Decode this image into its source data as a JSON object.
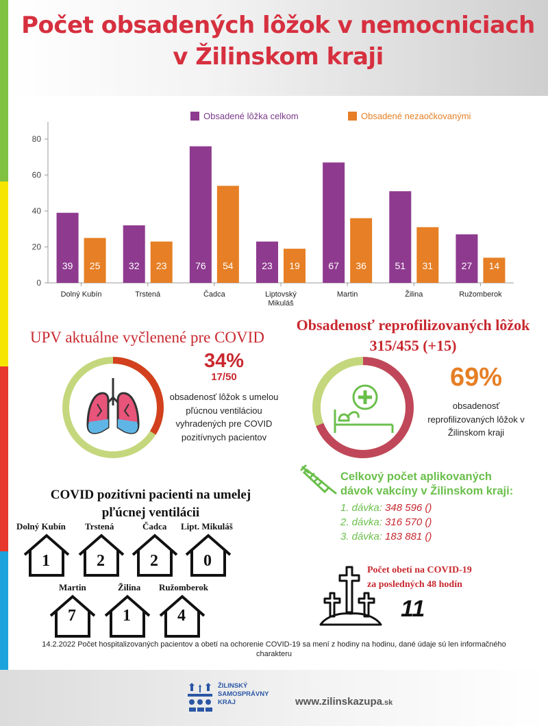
{
  "title_line1": "Počet obsadených lôžok v nemocniciach",
  "title_line2": "v Žilinskom kraji",
  "colors": {
    "purple": "#8e3a8f",
    "orange": "#e67f25",
    "red": "#c8282f",
    "green": "#6abf4b",
    "lightgreen": "#c5d77c"
  },
  "chart_data": {
    "type": "bar",
    "categories": [
      "Dolný Kubín",
      "Trstená",
      "Čadca",
      "Liptovský Mikuláš",
      "Martin",
      "Žilina",
      "Ružomberok"
    ],
    "series": [
      {
        "name": "Obsadené lôžka celkom",
        "values": [
          39,
          32,
          76,
          23,
          67,
          51,
          27
        ],
        "color": "#8e3a8f"
      },
      {
        "name": "Obsadené nezaočkovanými",
        "values": [
          25,
          23,
          54,
          19,
          36,
          31,
          14
        ],
        "color": "#e67f25"
      }
    ],
    "ylim": [
      0,
      85
    ],
    "yticks": [
      0,
      20,
      40,
      60,
      80
    ],
    "legend_position": "top-right",
    "grid": false
  },
  "upv": {
    "title": "UPV aktuálne vyčlenené pre COVID",
    "percent": "34%",
    "fraction": "17/50",
    "fill": 0.34,
    "description": "obsadenosť lôžok s umelou pľúcnou ventiláciou vyhradených pre COVID pozitívnych pacientov"
  },
  "reprof": {
    "title_line1": "Obsadenosť reprofilizovaných lôžok",
    "title_line2": "315/455 (+15)",
    "percent": "69%",
    "fill": 0.69,
    "description": "obsadenosť reprofilizovaných lôžok v Žilinskom kraji"
  },
  "vaccine": {
    "title_line1": "Celkový počet aplikovaných",
    "title_line2": "dávok vakcíny v Žilinskom kraji:",
    "doses": [
      {
        "label": "1. dávka:",
        "value": "348 596 ()"
      },
      {
        "label": "2. dávka:",
        "value": "316 570 ()"
      },
      {
        "label": "3. dávka:",
        "value": "183 881 ()"
      }
    ]
  },
  "ventilation": {
    "title_line1": "COVID pozitívni pacienti na umelej",
    "title_line2": "pľúcnej ventilácii",
    "cities": [
      {
        "name": "Dolný Kubín",
        "value": "1"
      },
      {
        "name": "Trstená",
        "value": "2"
      },
      {
        "name": "Čadca",
        "value": "2"
      },
      {
        "name": "Lipt. Mikuláš",
        "value": "0"
      },
      {
        "name": "Martin",
        "value": "7"
      },
      {
        "name": "Žilina",
        "value": "1"
      },
      {
        "name": "Ružomberok",
        "value": "4"
      }
    ]
  },
  "deaths": {
    "title_line1": "Počet obetí na COVID-19",
    "title_line2": "za posledných 48 hodín",
    "value": "11"
  },
  "note": "14.2.2022 Počet hospitalizovaných pacientov a obetí na ochorenie COVID-19 sa mení z hodiny na hodinu, dané údaje sú len informačného charakteru",
  "footer": {
    "logo_line1": "ŽILINSKÝ",
    "logo_line2": "SAMOSPRÁVNY",
    "logo_line3": "KRAJ",
    "website": "www.zilinskazupa",
    "website_tld": ".sk"
  },
  "stripe_colors": [
    "#7fc241",
    "#f6e500",
    "#e8372c",
    "#1da2dc"
  ]
}
